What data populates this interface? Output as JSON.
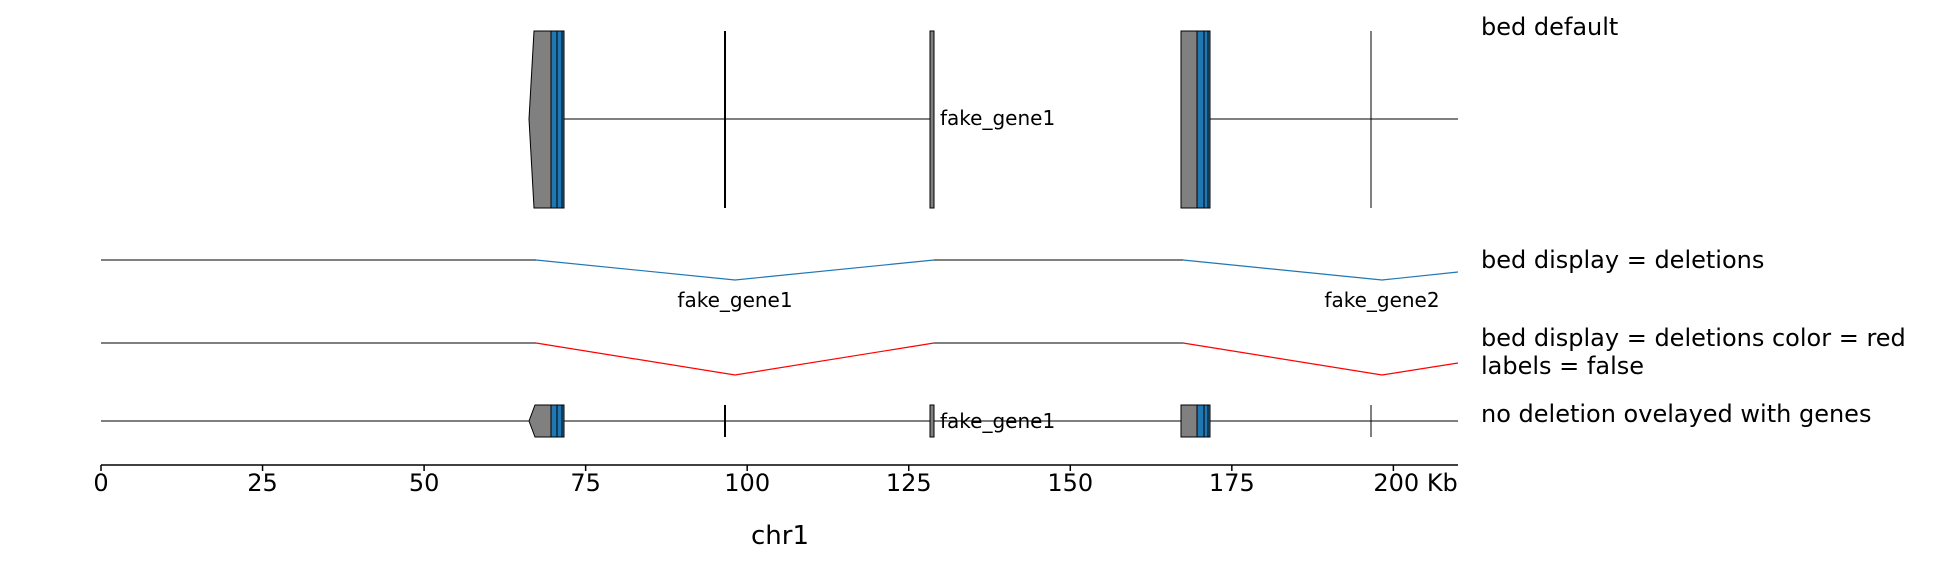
{
  "tracks": {
    "t1": {
      "title": "bed default"
    },
    "t2": {
      "title": "bed display = deletions"
    },
    "t3": {
      "title_line1": "bed display = deletions color = red",
      "title_line2": "labels = false"
    },
    "t4": {
      "title": "no deletion ovelayed with genes"
    }
  },
  "features": {
    "gene_label_1": "fake_gene1",
    "deletion_label_1": "fake_gene1",
    "deletion_label_2": "fake_gene2",
    "overlay_label_1": "fake_gene1"
  },
  "axis": {
    "chrom": "chr1",
    "ticks": [
      "0",
      "25",
      "50",
      "75",
      "100",
      "125",
      "150",
      "175",
      "200 Kb"
    ],
    "tick_values_kb": [
      0,
      25,
      50,
      75,
      100,
      125,
      150,
      175,
      200
    ],
    "range_kb": [
      0,
      210
    ]
  },
  "colors": {
    "intron": "#000000",
    "exon_fill": "#808080",
    "utr_fill": "#1f77b4",
    "deletion_default": "#1f77b4",
    "deletion_red": "#ff0000"
  }
}
